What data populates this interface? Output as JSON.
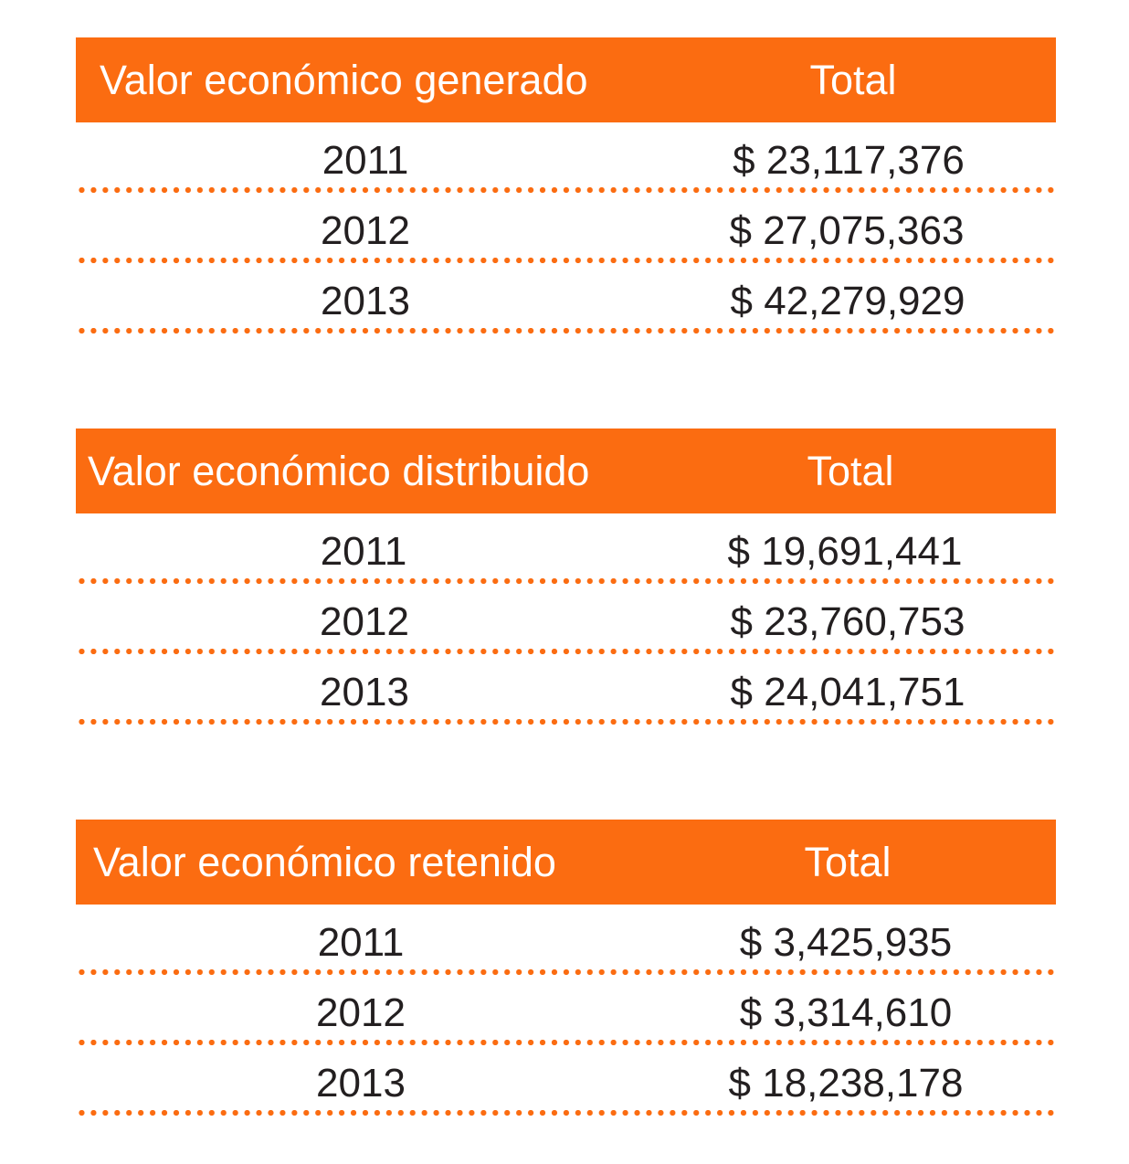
{
  "tables": [
    {
      "title": "Valor económico generado",
      "total_label": "Total",
      "rows": [
        {
          "year": "2011",
          "value": "$ 23,117,376"
        },
        {
          "year": "2012",
          "value": "$ 27,075,363"
        },
        {
          "year": "2013",
          "value": "$ 42,279,929"
        }
      ]
    },
    {
      "title": "Valor económico distribuido",
      "total_label": "Total",
      "rows": [
        {
          "year": "2011",
          "value": "$ 19,691,441"
        },
        {
          "year": "2012",
          "value": "$ 23,760,753"
        },
        {
          "year": "2013",
          "value": "$ 24,041,751"
        }
      ]
    },
    {
      "title": "Valor económico retenido",
      "total_label": "Total",
      "rows": [
        {
          "year": "2011",
          "value": "$ 3,425,935"
        },
        {
          "year": "2012",
          "value": "$ 3,314,610"
        },
        {
          "year": "2013",
          "value": "$ 18,238,178"
        }
      ]
    }
  ],
  "colors": {
    "accent": "#fb6c11",
    "text": "#231f20",
    "header_text": "#ffffff"
  }
}
